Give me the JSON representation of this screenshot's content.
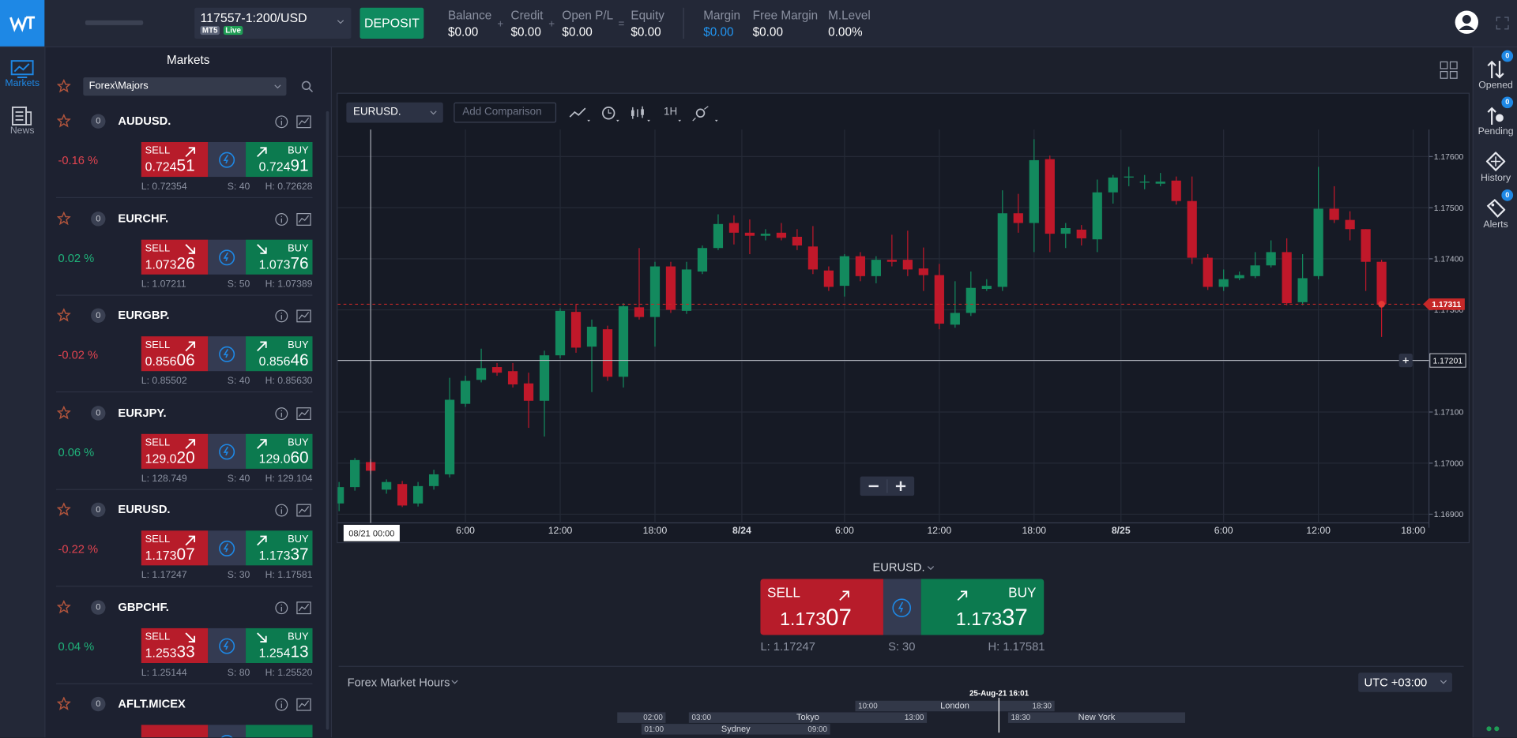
{
  "header": {
    "account": "117557-1:200/USD",
    "platform": "MT5",
    "status": "Live",
    "deposit": "DEPOSIT",
    "stats": [
      {
        "label": "Balance",
        "value": "$0.00"
      },
      {
        "label": "Credit",
        "value": "$0.00"
      },
      {
        "label": "Open P/L",
        "value": "$0.00"
      },
      {
        "label": "Equity",
        "value": "$0.00"
      },
      {
        "label": "Margin",
        "value": "$0.00"
      },
      {
        "label": "Free Margin",
        "value": "$0.00"
      },
      {
        "label": "M.Level",
        "value": "0.00%"
      }
    ],
    "operators": [
      "+",
      "+",
      "="
    ]
  },
  "left_nav": [
    {
      "label": "Markets"
    },
    {
      "label": "News"
    }
  ],
  "right_nav": [
    {
      "label": "Opened",
      "badge": "0"
    },
    {
      "label": "Pending",
      "badge": "0"
    },
    {
      "label": "History"
    },
    {
      "label": "Alerts",
      "badge": "0"
    }
  ],
  "markets": {
    "title": "Markets",
    "filter": "Forex\\Majors",
    "items": [
      {
        "symbol": "AUDUSD.",
        "count": "0",
        "change": "-0.16 %",
        "trend": "up",
        "sell_label": "SELL",
        "buy_label": "BUY",
        "sell": "0.72451",
        "buy": "0.72491",
        "low": "L: 0.72354",
        "spread": "S: 40",
        "high": "H: 0.72628"
      },
      {
        "symbol": "EURCHF.",
        "count": "0",
        "change": "0.02 %",
        "trend": "down",
        "sell_label": "SELL",
        "buy_label": "BUY",
        "sell": "1.07326",
        "buy": "1.07376",
        "low": "L: 1.07211",
        "spread": "S: 50",
        "high": "H: 1.07389"
      },
      {
        "symbol": "EURGBP.",
        "count": "0",
        "change": "-0.02 %",
        "trend": "up",
        "sell_label": "SELL",
        "buy_label": "BUY",
        "sell": "0.85606",
        "buy": "0.85646",
        "low": "L: 0.85502",
        "spread": "S: 40",
        "high": "H: 0.85630"
      },
      {
        "symbol": "EURJPY.",
        "count": "0",
        "change": "0.06 %",
        "trend": "up",
        "sell_label": "SELL",
        "buy_label": "BUY",
        "sell": "129.020",
        "buy": "129.060",
        "low": "L: 128.749",
        "spread": "S: 40",
        "high": "H: 129.104"
      },
      {
        "symbol": "EURUSD.",
        "count": "0",
        "change": "-0.22 %",
        "trend": "up",
        "sell_label": "SELL",
        "buy_label": "BUY",
        "sell": "1.17307",
        "buy": "1.17337",
        "low": "L: 1.17247",
        "spread": "S: 30",
        "high": "H: 1.17581"
      },
      {
        "symbol": "GBPCHF.",
        "count": "0",
        "change": "0.04 %",
        "trend": "down",
        "sell_label": "SELL",
        "buy_label": "BUY",
        "sell": "1.25333",
        "buy": "1.25413",
        "low": "L: 1.25144",
        "spread": "S: 80",
        "high": "H: 1.25520"
      },
      {
        "symbol": "AFLT.MICEX",
        "count": "0"
      }
    ]
  },
  "chart_data": {
    "type": "candlestick",
    "symbol": "EURUSD.",
    "comparison_placeholder": "Add Comparison",
    "timeframe": "1H",
    "open": [
      1.16921,
      1.16953,
      1.17002,
      1.16948,
      1.16959,
      1.16921,
      1.16955,
      1.16978,
      1.17116,
      1.17163,
      1.17188,
      1.1718,
      1.17156,
      1.17122,
      1.17211,
      1.17296,
      1.17228,
      1.17262,
      1.17169,
      1.17305,
      1.17286,
      1.17385,
      1.17298,
      1.17375,
      1.17421,
      1.1747,
      1.17451,
      1.17445,
      1.17451,
      1.17443,
      1.17424,
      1.17377,
      1.17347,
      1.17405,
      1.17366,
      1.17398,
      1.17398,
      1.17381,
      1.17368,
      1.17271,
      1.17294,
      1.17341,
      1.17345,
      1.17489,
      1.1747,
      1.17595,
      1.17449,
      1.17457,
      1.17438,
      1.1753,
      1.17559,
      1.17549,
      1.17547,
      1.17553,
      1.17513,
      1.17402,
      1.17345,
      1.17362,
      1.17366,
      1.17387,
      1.17413,
      1.17315,
      1.17366,
      1.17498,
      1.17476,
      1.17458,
      1.17394
    ],
    "high": [
      1.16963,
      1.1701,
      1.17008,
      1.16968,
      1.16965,
      1.16963,
      1.16987,
      1.17167,
      1.17171,
      1.17224,
      1.17196,
      1.17196,
      1.17177,
      1.1722,
      1.17303,
      1.17311,
      1.17281,
      1.17269,
      1.17313,
      1.17421,
      1.17394,
      1.17394,
      1.17394,
      1.17426,
      1.17487,
      1.17485,
      1.17477,
      1.17458,
      1.1747,
      1.17458,
      1.17464,
      1.17385,
      1.17409,
      1.17413,
      1.17405,
      1.17447,
      1.17455,
      1.17422,
      1.1739,
      1.17356,
      1.17375,
      1.1736,
      1.17534,
      1.17527,
      1.17634,
      1.17602,
      1.1747,
      1.17466,
      1.17555,
      1.17564,
      1.1758,
      1.17564,
      1.17568,
      1.17561,
      1.17561,
      1.17409,
      1.17379,
      1.17375,
      1.17413,
      1.17436,
      1.1744,
      1.17409,
      1.1758,
      1.17542,
      1.17493,
      1.17458,
      1.17398
    ],
    "low": [
      1.16906,
      1.16946,
      1.16978,
      1.1694,
      1.16914,
      1.16915,
      1.16948,
      1.16972,
      1.1711,
      1.17158,
      1.17171,
      1.17148,
      1.17069,
      1.17052,
      1.17205,
      1.17216,
      1.17139,
      1.17161,
      1.17148,
      1.17281,
      1.17228,
      1.17294,
      1.17292,
      1.1737,
      1.17417,
      1.17428,
      1.17409,
      1.17436,
      1.17436,
      1.17417,
      1.1737,
      1.17337,
      1.17326,
      1.17356,
      1.17352,
      1.17385,
      1.17366,
      1.17337,
      1.17262,
      1.17265,
      1.17288,
      1.17337,
      1.17337,
      1.17451,
      1.17413,
      1.17413,
      1.17421,
      1.17426,
      1.17413,
      1.17508,
      1.17542,
      1.17536,
      1.17542,
      1.17506,
      1.1739,
      1.17339,
      1.17337,
      1.17358,
      1.17362,
      1.17383,
      1.17309,
      1.17309,
      1.1736,
      1.1747,
      1.17436,
      1.17337,
      1.17247
    ],
    "close": [
      1.16953,
      1.17006,
      1.16985,
      1.16963,
      1.16917,
      1.16955,
      1.16978,
      1.17124,
      1.17161,
      1.17186,
      1.17177,
      1.17154,
      1.17122,
      1.17211,
      1.17298,
      1.17226,
      1.17267,
      1.17169,
      1.17307,
      1.17286,
      1.17385,
      1.173,
      1.17379,
      1.17421,
      1.17468,
      1.17451,
      1.17445,
      1.17449,
      1.17441,
      1.17426,
      1.17379,
      1.17345,
      1.17405,
      1.17366,
      1.17398,
      1.17394,
      1.17379,
      1.17368,
      1.17273,
      1.17294,
      1.17343,
      1.17347,
      1.17489,
      1.1747,
      1.17593,
      1.17449,
      1.1746,
      1.1744,
      1.1753,
      1.17559,
      1.17561,
      1.17551,
      1.17551,
      1.17513,
      1.17402,
      1.17345,
      1.1736,
      1.17368,
      1.17387,
      1.17413,
      1.17313,
      1.17362,
      1.17498,
      1.17476,
      1.17458,
      1.17394,
      1.17311
    ],
    "up_color": "#138a5e",
    "down_color": "#c0182a",
    "xlim": [
      -0.09,
      69
    ],
    "xticks": [
      {
        "value": 8,
        "label": "6:00"
      },
      {
        "value": 14,
        "label": "12:00"
      },
      {
        "value": 20,
        "label": "18:00"
      },
      {
        "value": 25.5,
        "label": "8/24"
      },
      {
        "value": 32,
        "label": "6:00"
      },
      {
        "value": 38,
        "label": "12:00"
      },
      {
        "value": 44,
        "label": "18:00"
      },
      {
        "value": 49.5,
        "label": "8/25"
      },
      {
        "value": 56,
        "label": "6:00"
      },
      {
        "value": 62,
        "label": "12:00"
      },
      {
        "value": 68,
        "label": "18:00"
      }
    ],
    "ylim": [
      1.16883,
      1.17653
    ],
    "yticks": [
      {
        "value": 1.169,
        "label": "1.16900"
      },
      {
        "value": 1.17,
        "label": "1.17000"
      },
      {
        "value": 1.171,
        "label": "1.17100"
      },
      {
        "value": 1.172,
        "label": "1.17200"
      },
      {
        "value": 1.173,
        "label": "1.17300"
      },
      {
        "value": 1.174,
        "label": "1.17400"
      },
      {
        "value": 1.175,
        "label": "1.17500"
      },
      {
        "value": 1.176,
        "label": "1.17600"
      }
    ],
    "grid": true,
    "current_price": 1.17311,
    "crosshair": {
      "x": 2,
      "x_label": "08/21 00:00",
      "y": 1.17201
    }
  },
  "trade_panel": {
    "symbol": "EURUSD.",
    "sell_label": "SELL",
    "buy_label": "BUY",
    "sell": "1.17307",
    "buy": "1.17337",
    "low": "L: 1.17247",
    "spread": "S: 30",
    "high": "H: 1.17581"
  },
  "market_hours": {
    "title": "Forex Market Hours",
    "timezone": "UTC +03:00",
    "now": "25-Aug-21 16:01",
    "sessions": [
      {
        "name": "London",
        "open": "10:00",
        "close": "18:30"
      },
      {
        "name": "Tokyo",
        "open": "03:00",
        "close": "13:00"
      },
      {
        "name": "New York",
        "open": "18:30"
      },
      {
        "name": "Sydney",
        "open": "01:00",
        "close": "09:00"
      }
    ],
    "wrap_close": "02:00"
  }
}
